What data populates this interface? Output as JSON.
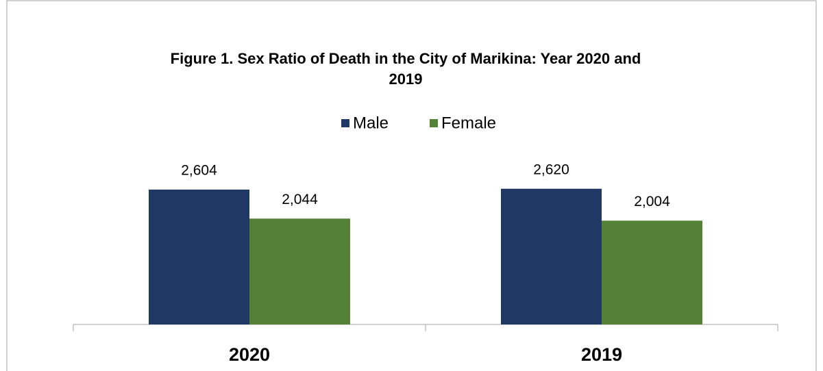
{
  "chart_data": {
    "type": "bar",
    "title": [
      "Figure 1. Sex Ratio of Death in the City of Marikina: Year 2020 and",
      "2019"
    ],
    "categories": [
      "2020",
      "2019"
    ],
    "series": [
      {
        "name": "Male",
        "color": "#1f3864",
        "values": [
          2604,
          2620
        ],
        "value_labels": [
          "2,604",
          "2,620"
        ]
      },
      {
        "name": "Female",
        "color": "#538135",
        "values": [
          2044,
          2004
        ],
        "value_labels": [
          "2,044",
          "2,004"
        ]
      }
    ],
    "ylim": [
      0,
      3000
    ],
    "legend": "top"
  }
}
